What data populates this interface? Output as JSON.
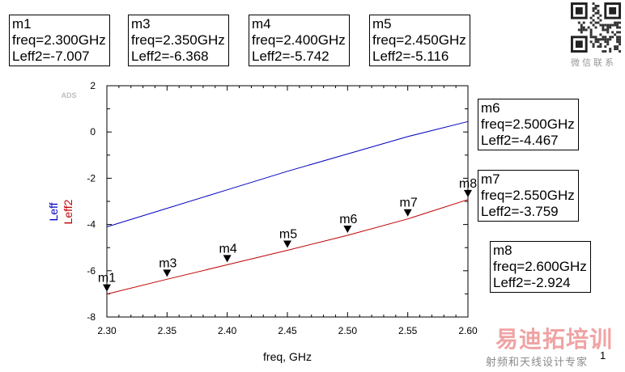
{
  "markers": [
    {
      "name": "m1",
      "freq": "freq=2.300GHz",
      "leff2": "Leff2=-7.007"
    },
    {
      "name": "m3",
      "freq": "freq=2.350GHz",
      "leff2": "Leff2=-6.368"
    },
    {
      "name": "m4",
      "freq": "freq=2.400GHz",
      "leff2": "Leff2=-5.742"
    },
    {
      "name": "m5",
      "freq": "freq=2.450GHz",
      "leff2": "Leff2=-5.116"
    },
    {
      "name": "m6",
      "freq": "freq=2.500GHz",
      "leff2": "Leff2=-4.467"
    },
    {
      "name": "m7",
      "freq": "freq=2.550GHz",
      "leff2": "Leff2=-3.759"
    },
    {
      "name": "m8",
      "freq": "freq=2.600GHz",
      "leff2": "Leff2=-2.924"
    }
  ],
  "chart_data": {
    "type": "line",
    "xlabel": "freq, GHz",
    "ylabel": [
      "Leff",
      "Leff2"
    ],
    "watermark_label": "ADS",
    "xlim": [
      2.3,
      2.6
    ],
    "ylim": [
      -8,
      2
    ],
    "x_ticks": [
      2.3,
      2.35,
      2.4,
      2.45,
      2.5,
      2.55,
      2.6
    ],
    "x_tick_labels": [
      "2.30",
      "2.35",
      "2.40",
      "2.45",
      "2.50",
      "2.55",
      "2.60"
    ],
    "y_ticks": [
      -8,
      -6,
      -4,
      -2,
      0,
      2
    ],
    "y_tick_labels": [
      "-8",
      "-6",
      "-4",
      "-2",
      "0",
      "2"
    ],
    "grid": false,
    "series": [
      {
        "name": "Leff",
        "color": "#0000c0",
        "x": [
          2.3,
          2.35,
          2.4,
          2.45,
          2.5,
          2.55,
          2.6
        ],
        "values": [
          -4.1,
          -3.3,
          -2.5,
          -1.7,
          -0.95,
          -0.2,
          0.45
        ]
      },
      {
        "name": "Leff2",
        "color": "#c00000",
        "x": [
          2.3,
          2.35,
          2.4,
          2.45,
          2.5,
          2.55,
          2.6
        ],
        "values": [
          -7.007,
          -6.368,
          -5.742,
          -5.116,
          -4.467,
          -3.759,
          -2.924
        ]
      }
    ],
    "markers": [
      {
        "name": "m1",
        "x": 2.3,
        "y": -7.007
      },
      {
        "name": "m3",
        "x": 2.35,
        "y": -6.368
      },
      {
        "name": "m4",
        "x": 2.4,
        "y": -5.742
      },
      {
        "name": "m5",
        "x": 2.45,
        "y": -5.116
      },
      {
        "name": "m6",
        "x": 2.5,
        "y": -4.467
      },
      {
        "name": "m7",
        "x": 2.55,
        "y": -3.759
      },
      {
        "name": "m8",
        "x": 2.6,
        "y": -2.924
      }
    ]
  },
  "qr_caption": "微信联系",
  "watermark": {
    "line1": "易迪拓培训",
    "line2": "射频和天线设计专家"
  },
  "page_number": "1"
}
